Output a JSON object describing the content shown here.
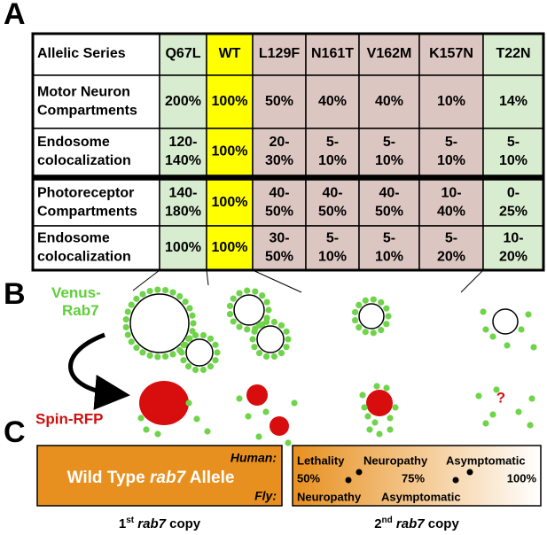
{
  "panels": {
    "a": "A",
    "b": "B",
    "c": "C"
  },
  "table": {
    "header": [
      "Allelic Series",
      "Q67L",
      "WT",
      "L129F",
      "N161T",
      "V162M",
      "K157N",
      "T22N"
    ],
    "rows": [
      {
        "label": [
          "Motor Neuron",
          "Compartments"
        ],
        "cells": [
          [
            "200%"
          ],
          [
            "100%"
          ],
          [
            "50%"
          ],
          [
            "40%"
          ],
          [
            "40%"
          ],
          [
            "10%"
          ],
          [
            "14%"
          ]
        ]
      },
      {
        "label": [
          "Endosome",
          "colocalization"
        ],
        "cells": [
          [
            "120-",
            "140%"
          ],
          [
            "100%"
          ],
          [
            "20-",
            "30%"
          ],
          [
            "5-",
            "10%"
          ],
          [
            "5-",
            "10%"
          ],
          [
            "5-",
            "10%"
          ],
          [
            "5-",
            "10%"
          ]
        ]
      },
      {
        "label": [
          "Photoreceptor",
          "Compartments"
        ],
        "cells": [
          [
            "140-",
            "180%"
          ],
          [
            "100%"
          ],
          [
            "40-",
            "50%"
          ],
          [
            "40-",
            "50%"
          ],
          [
            "40-",
            "50%"
          ],
          [
            "10-",
            "40%"
          ],
          [
            "0-",
            "25%"
          ]
        ]
      },
      {
        "label": [
          "Endosome",
          "colocalization"
        ],
        "cells": [
          [
            "100%"
          ],
          [
            "100%"
          ],
          [
            "30-",
            "50%"
          ],
          [
            "5-",
            "10%"
          ],
          [
            "5-",
            "10%"
          ],
          [
            "5-",
            "20%"
          ],
          [
            "10-",
            "20%"
          ]
        ]
      }
    ]
  },
  "diagram": {
    "venus": [
      "Venus-",
      "Rab7"
    ],
    "spin": "Spin-RFP",
    "unknown": "?"
  },
  "copies": {
    "first": {
      "human": "Human:",
      "fly": "Fly:",
      "allele": [
        "Wild Type",
        "rab7",
        "Allele"
      ],
      "caption": {
        "number": "1",
        "suffix": "st",
        "gene": "rab7",
        "rest": "copy"
      }
    },
    "second": {
      "top": [
        "Lethality",
        "Neuropathy",
        "Asymptomatic"
      ],
      "percents": [
        "50%",
        "75%",
        "100%"
      ],
      "bottom": [
        "Neuropathy",
        "Asymptomatic"
      ],
      "caption": {
        "number": "2",
        "suffix": "nd",
        "gene": "rab7",
        "rest": "copy"
      }
    }
  }
}
